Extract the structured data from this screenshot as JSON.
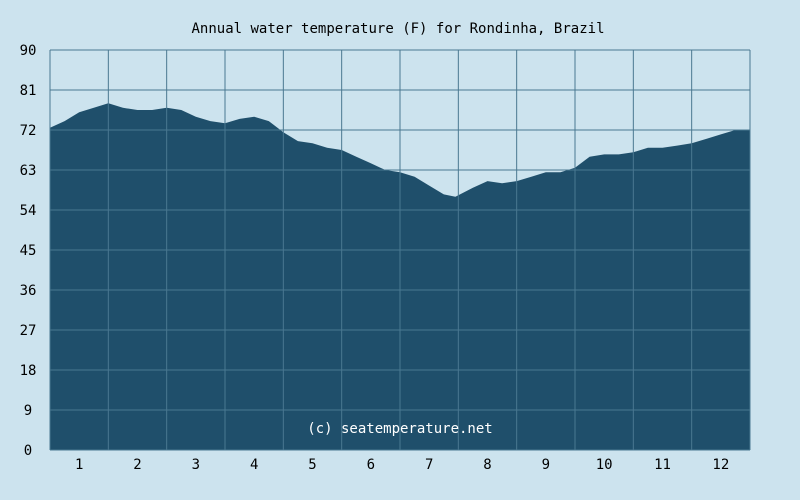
{
  "chart_data": {
    "type": "area",
    "title": "Annual water temperature (F) for Rondinha, Brazil",
    "annotation": "(c) seatemperature.net",
    "xlabel": "",
    "ylabel": "",
    "ylim": [
      0,
      90
    ],
    "yticks": [
      "0",
      "9",
      "18",
      "27",
      "36",
      "45",
      "54",
      "63",
      "72",
      "81",
      "90"
    ],
    "xticks": [
      "1",
      "2",
      "3",
      "4",
      "5",
      "6",
      "7",
      "8",
      "9",
      "10",
      "11",
      "12"
    ],
    "xlim": [
      0.5,
      12.5
    ],
    "grid": true,
    "colors": {
      "background": "#cce3ee",
      "fill": "#1f4f6b",
      "grid": "#4a7891"
    },
    "series": [
      {
        "x": [
          0.5,
          0.75,
          1.0,
          1.25,
          1.5,
          1.75,
          2.0,
          2.25,
          2.5,
          2.75,
          3.0,
          3.25,
          3.5,
          3.75,
          4.0,
          4.25,
          4.5,
          4.75,
          5.0,
          5.25,
          5.5,
          5.75,
          6.0,
          6.25,
          6.5,
          6.75,
          7.0,
          7.25,
          7.45,
          7.75,
          8.0,
          8.25,
          8.5,
          8.75,
          9.0,
          9.25,
          9.5,
          9.75,
          10.0,
          10.25,
          10.5,
          10.75,
          11.0,
          11.25,
          11.5,
          11.75,
          12.0,
          12.25,
          12.5
        ],
        "values": [
          72.5,
          74.0,
          76.0,
          77.0,
          78.0,
          77.0,
          76.5,
          76.5,
          77.0,
          76.5,
          75.0,
          74.0,
          73.5,
          74.5,
          75.0,
          74.0,
          71.5,
          69.5,
          69.0,
          68.0,
          67.5,
          66.0,
          64.5,
          63.0,
          62.5,
          61.5,
          59.5,
          57.5,
          57.0,
          59.0,
          60.5,
          60.0,
          60.5,
          61.5,
          62.5,
          62.5,
          63.5,
          66.0,
          66.5,
          66.5,
          67.0,
          68.0,
          68.0,
          68.5,
          69.0,
          70.0,
          71.0,
          72.0,
          72.0
        ]
      }
    ]
  }
}
